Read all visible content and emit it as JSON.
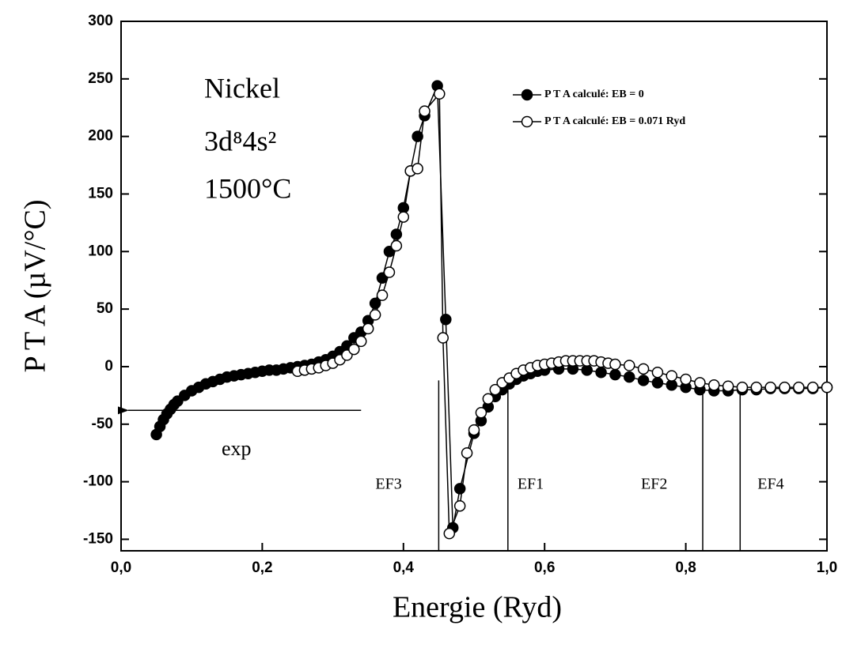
{
  "chart_data": {
    "type": "line",
    "x_label": "Energie (Ryd)",
    "y_label": "P T A (µV/°C)",
    "annotations": [
      "Nickel",
      "3d⁸4s²",
      "1500°C",
      "exp"
    ],
    "arrow": {
      "x": [
        0.34,
        0.01
      ],
      "y": -38
    },
    "vlines": [
      {
        "x": 0.45,
        "y_top": -12,
        "label": "EF3"
      },
      {
        "x": 0.548,
        "y_top": -18,
        "label": "EF1"
      },
      {
        "x": 0.824,
        "y_top": -23,
        "label": "EF2"
      },
      {
        "x": 0.877,
        "y_top": -23,
        "label": "EF4"
      }
    ],
    "xlim": [
      0,
      1.0
    ],
    "ylim": [
      -160,
      300
    ],
    "xticks": [
      {
        "value": 0,
        "label": "0,0"
      },
      {
        "value": 0.2,
        "label": "0,2"
      },
      {
        "value": 0.4,
        "label": "0,4"
      },
      {
        "value": 0.6,
        "label": "0,6"
      },
      {
        "value": 0.8,
        "label": "0,8"
      },
      {
        "value": 1.0,
        "label": "1,0"
      }
    ],
    "yticks": [
      -150,
      -100,
      -50,
      0,
      50,
      100,
      150,
      200,
      250,
      300
    ],
    "legend": "top-right",
    "series": [
      {
        "name": "P T A calculé: EB = 0",
        "color": "#000000",
        "marker": "filled",
        "x": [
          0.05,
          0.055,
          0.06,
          0.065,
          0.07,
          0.075,
          0.08,
          0.09,
          0.1,
          0.11,
          0.12,
          0.13,
          0.14,
          0.15,
          0.16,
          0.17,
          0.18,
          0.19,
          0.2,
          0.21,
          0.22,
          0.23,
          0.24,
          0.25,
          0.26,
          0.27,
          0.28,
          0.29,
          0.3,
          0.31,
          0.32,
          0.33,
          0.34,
          0.35,
          0.36,
          0.37,
          0.38,
          0.39,
          0.4,
          0.41,
          0.42,
          0.43,
          0.448,
          0.46,
          0.47,
          0.48,
          0.5,
          0.51,
          0.52,
          0.53,
          0.54,
          0.55,
          0.56,
          0.57,
          0.58,
          0.59,
          0.6,
          0.62,
          0.64,
          0.66,
          0.68,
          0.7,
          0.72,
          0.74,
          0.76,
          0.78,
          0.8,
          0.82,
          0.84,
          0.86,
          0.88,
          0.9,
          0.92,
          0.94,
          0.96,
          0.98,
          1.0
        ],
        "values": [
          -59,
          -52,
          -46,
          -41,
          -37,
          -33,
          -30,
          -25,
          -21,
          -18,
          -15,
          -13,
          -11,
          -9,
          -8,
          -7,
          -6,
          -5,
          -4,
          -3,
          -3,
          -2,
          -1,
          0,
          1,
          2,
          4,
          6,
          9,
          13,
          18,
          25,
          30,
          40,
          55,
          77,
          100,
          115,
          138,
          170,
          200,
          218,
          244,
          41,
          -140,
          -106,
          -58,
          -47,
          -35,
          -26,
          -20,
          -15,
          -11,
          -8,
          -6,
          -4,
          -3,
          -2,
          -2,
          -3,
          -5,
          -7,
          -9,
          -12,
          -14,
          -16,
          -18,
          -20,
          -21,
          -21,
          -20,
          -20,
          -19,
          -19,
          -19,
          -19,
          -18
        ]
      },
      {
        "name": "P T A calculé: EB = 0.071 Ryd",
        "color": "#000000",
        "marker": "open",
        "x": [
          0.25,
          0.26,
          0.27,
          0.28,
          0.29,
          0.3,
          0.31,
          0.32,
          0.33,
          0.34,
          0.35,
          0.36,
          0.37,
          0.38,
          0.39,
          0.4,
          0.41,
          0.42,
          0.43,
          0.451,
          0.456,
          0.465,
          0.48,
          0.49,
          0.5,
          0.51,
          0.52,
          0.53,
          0.54,
          0.55,
          0.56,
          0.57,
          0.58,
          0.59,
          0.6,
          0.61,
          0.62,
          0.63,
          0.64,
          0.65,
          0.66,
          0.67,
          0.68,
          0.69,
          0.7,
          0.72,
          0.74,
          0.76,
          0.78,
          0.8,
          0.82,
          0.84,
          0.86,
          0.88,
          0.9,
          0.92,
          0.94,
          0.96,
          0.98,
          1.0
        ],
        "values": [
          -4,
          -3,
          -2,
          -1,
          1,
          3,
          6,
          10,
          15,
          22,
          33,
          45,
          62,
          82,
          105,
          130,
          170,
          172,
          222,
          237,
          25,
          -145,
          -121,
          -75,
          -55,
          -40,
          -28,
          -20,
          -14,
          -10,
          -6,
          -3,
          -1,
          1,
          2,
          3,
          4,
          5,
          5,
          5,
          5,
          5,
          4,
          3,
          2,
          1,
          -2,
          -5,
          -8,
          -11,
          -14,
          -16,
          -17,
          -18,
          -18,
          -18,
          -18,
          -18,
          -18,
          -18
        ]
      }
    ]
  }
}
